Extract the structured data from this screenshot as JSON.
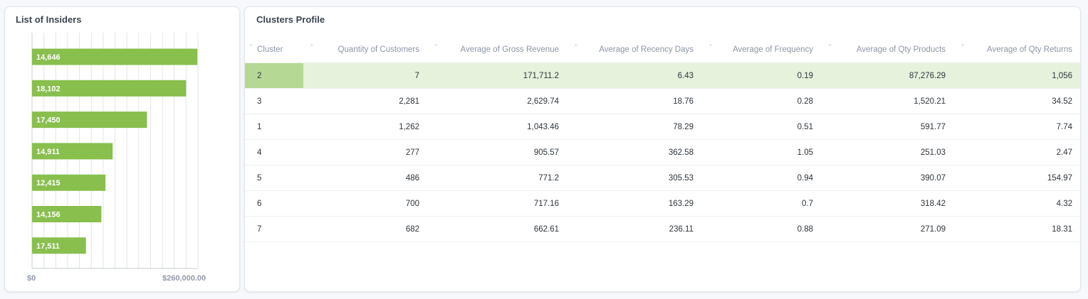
{
  "insiders": {
    "title": "List of Insiders",
    "chart_data": {
      "type": "bar",
      "orientation": "horizontal",
      "categories": [
        "14,646",
        "18,102",
        "17,450",
        "14,911",
        "12,415",
        "14,156",
        "17,511"
      ],
      "values": [
        279000,
        260000,
        194000,
        136000,
        124000,
        117000,
        91000
      ],
      "xlim": [
        0,
        280000
      ],
      "xticks": [
        "$0",
        "$260,000.00"
      ],
      "grid": true,
      "bar_color": "#88bf4d"
    }
  },
  "clusters": {
    "title": "Clusters Profile",
    "columns": [
      "Cluster",
      "Quantity of Customers",
      "Average of Gross Revenue",
      "Average of Recency Days",
      "Average of Frequency",
      "Average of Qty Products",
      "Average of Qty Returns"
    ],
    "rows": [
      [
        "2",
        "7",
        "171,711.2",
        "6.43",
        "0.19",
        "87,276.29",
        "1,056"
      ],
      [
        "3",
        "2,281",
        "2,629.74",
        "18.76",
        "0.28",
        "1,520.21",
        "34.52"
      ],
      [
        "1",
        "1,262",
        "1,043.46",
        "78.29",
        "0.51",
        "591.77",
        "7.74"
      ],
      [
        "4",
        "277",
        "905.57",
        "362.58",
        "1.05",
        "251.03",
        "2.47"
      ],
      [
        "5",
        "486",
        "771.2",
        "305.53",
        "0.94",
        "390.07",
        "154.97"
      ],
      [
        "6",
        "700",
        "717.16",
        "163.29",
        "0.7",
        "318.42",
        "4.32"
      ],
      [
        "7",
        "682",
        "662.61",
        "236.11",
        "0.88",
        "271.09",
        "18.31"
      ]
    ],
    "highlight_color": "#e6f2dc",
    "highlight_cell_color": "#b5d995"
  }
}
